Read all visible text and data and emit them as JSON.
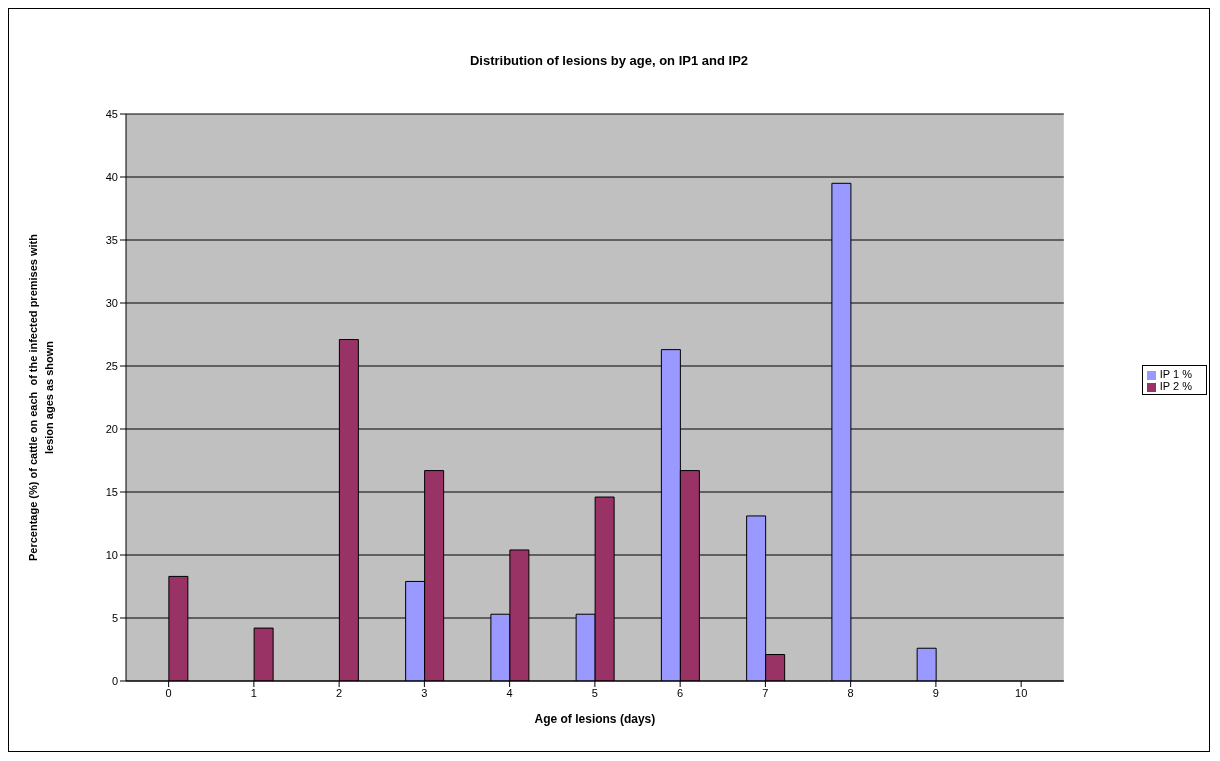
{
  "chart_data": {
    "type": "bar",
    "title": "Distribution of lesions by age, on IP1 and IP2",
    "xlabel": "Age of lesions (days)",
    "ylabel": "Percentage (%) of cattle on each  of the infected premises with lesion ages as shown",
    "categories": [
      "0",
      "1",
      "2",
      "3",
      "4",
      "5",
      "6",
      "7",
      "8",
      "9",
      "10"
    ],
    "series": [
      {
        "name": "IP 1 %",
        "color": "#9999ff",
        "values": [
          null,
          null,
          null,
          7.9,
          5.3,
          5.3,
          26.3,
          13.1,
          39.5,
          2.6,
          null
        ]
      },
      {
        "name": "IP 2 %",
        "color": "#993366",
        "values": [
          8.3,
          4.2,
          27.1,
          16.7,
          10.4,
          14.6,
          16.7,
          2.1,
          null,
          null,
          null
        ]
      }
    ],
    "ylim": [
      0,
      45
    ],
    "yticks": [
      0,
      5,
      10,
      15,
      20,
      25,
      30,
      35,
      40,
      45
    ],
    "grid": "y",
    "legend": "right"
  }
}
